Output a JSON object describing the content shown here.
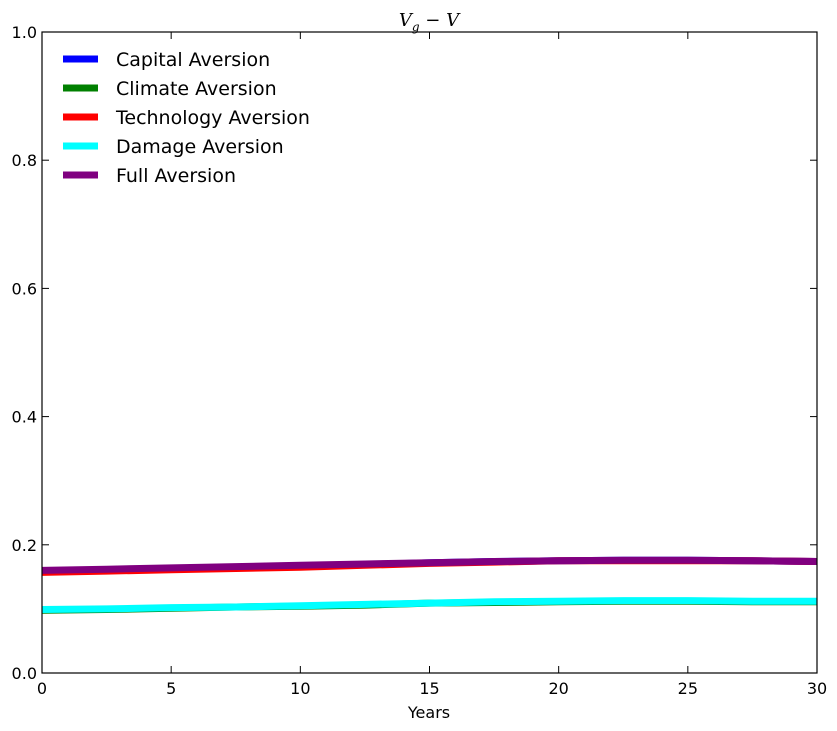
{
  "chart_data": {
    "type": "line",
    "title": "V_g − V",
    "xlabel": "Years",
    "ylabel": "",
    "xlim": [
      0,
      30
    ],
    "ylim": [
      0,
      1.0
    ],
    "x_ticks": [
      0,
      5,
      10,
      15,
      20,
      25,
      30
    ],
    "y_ticks": [
      0.0,
      0.2,
      0.4,
      0.6,
      0.8,
      1.0
    ],
    "x_tick_labels": [
      "0",
      "5",
      "10",
      "15",
      "20",
      "25",
      "30"
    ],
    "y_tick_labels": [
      "0.0",
      "0.2",
      "0.4",
      "0.6",
      "0.8",
      "1.0"
    ],
    "grid": false,
    "legend_position": "top-left",
    "x": [
      0,
      2.5,
      5,
      7.5,
      10,
      12.5,
      15,
      17.5,
      20,
      22.5,
      25,
      27.5,
      30
    ],
    "series": [
      {
        "name": "Capital Aversion",
        "color": "#0000ff",
        "values": [
          0.158,
          0.16,
          0.163,
          0.165,
          0.167,
          0.169,
          0.172,
          0.174,
          0.175,
          0.176,
          0.176,
          0.175,
          0.174
        ]
      },
      {
        "name": "Climate Aversion",
        "color": "#008000",
        "values": [
          0.098,
          0.099,
          0.101,
          0.103,
          0.104,
          0.106,
          0.109,
          0.11,
          0.111,
          0.112,
          0.112,
          0.111,
          0.111
        ]
      },
      {
        "name": "Technology Aversion",
        "color": "#ff0000",
        "values": [
          0.157,
          0.159,
          0.161,
          0.163,
          0.165,
          0.168,
          0.171,
          0.173,
          0.175,
          0.175,
          0.175,
          0.175,
          0.174
        ]
      },
      {
        "name": "Damage Aversion",
        "color": "#00ffff",
        "values": [
          0.099,
          0.1,
          0.102,
          0.103,
          0.105,
          0.107,
          0.109,
          0.111,
          0.112,
          0.113,
          0.113,
          0.112,
          0.112
        ]
      },
      {
        "name": "Full Aversion",
        "color": "#800080",
        "values": [
          0.16,
          0.162,
          0.164,
          0.166,
          0.168,
          0.17,
          0.172,
          0.174,
          0.175,
          0.176,
          0.176,
          0.175,
          0.174
        ]
      }
    ]
  }
}
